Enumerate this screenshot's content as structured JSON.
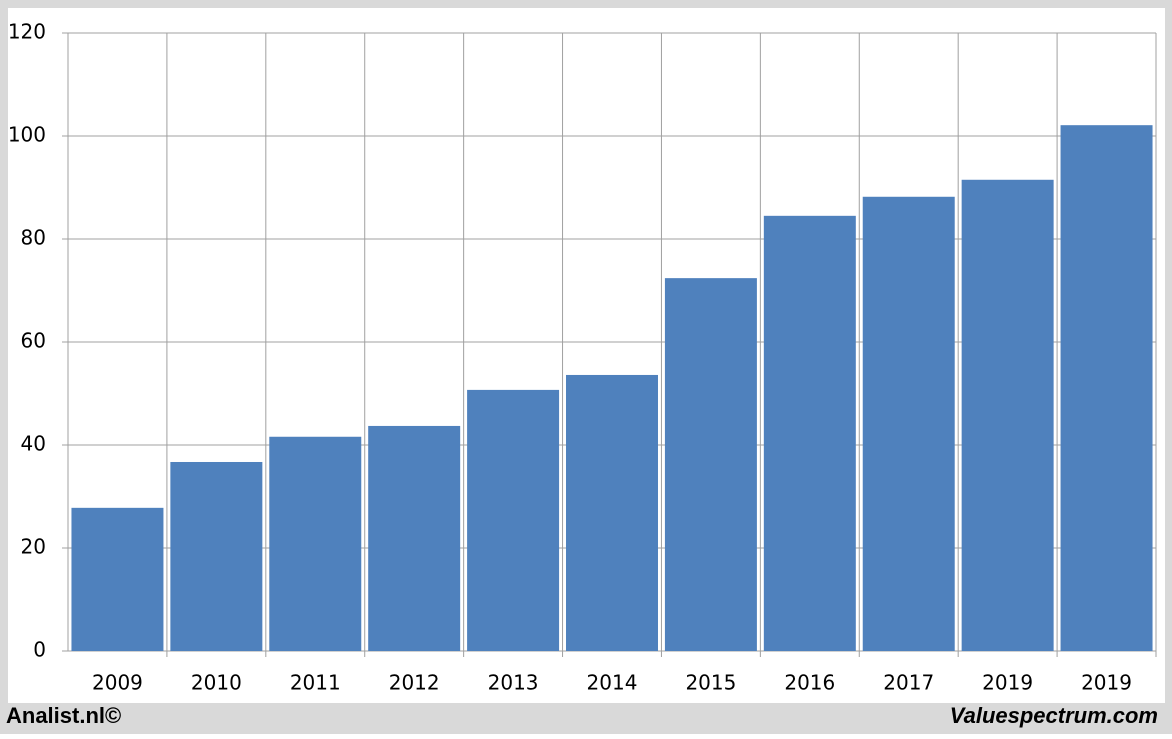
{
  "chart_data": {
    "type": "bar",
    "categories": [
      "2009",
      "2010",
      "2011",
      "2012",
      "2013",
      "2014",
      "2015",
      "2016",
      "2017",
      "2019",
      "2019"
    ],
    "values": [
      27.8,
      36.7,
      41.6,
      43.7,
      50.7,
      53.6,
      72.4,
      84.5,
      88.2,
      91.5,
      102.1
    ],
    "color": "#4f81bd",
    "ylim": [
      0,
      120
    ],
    "yticks": [
      0,
      20,
      40,
      60,
      80,
      100,
      120
    ],
    "grid": true
  },
  "footer": {
    "left": "Analist.nl©",
    "right": "Valuespectrum.com"
  }
}
